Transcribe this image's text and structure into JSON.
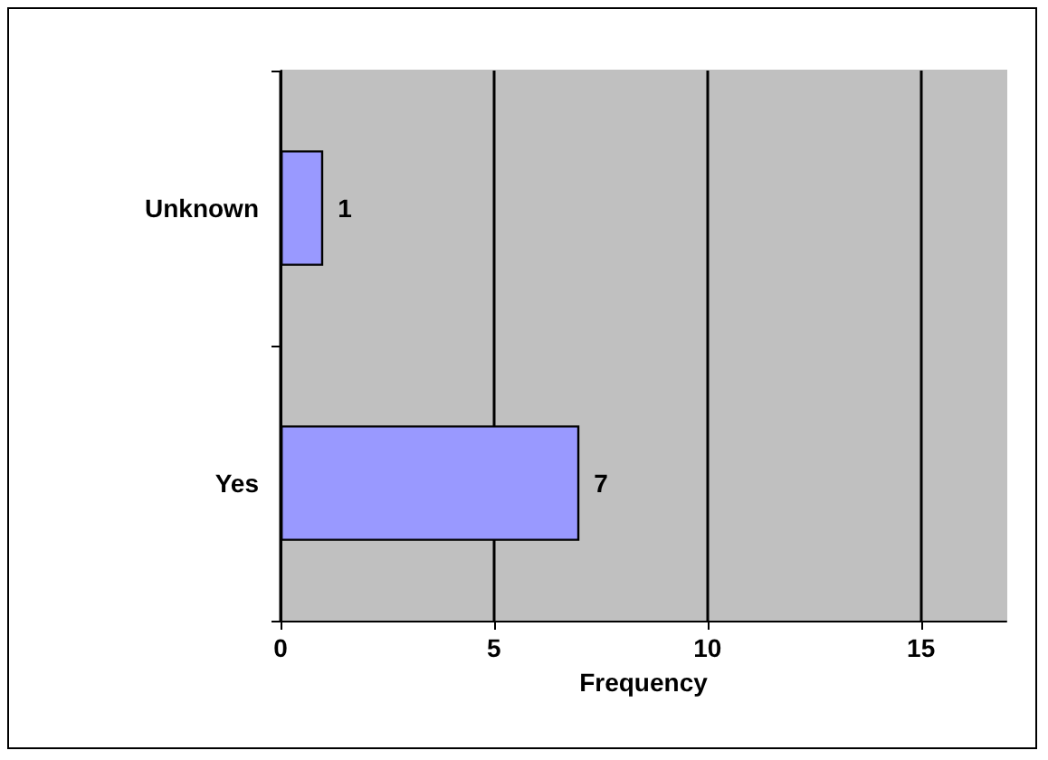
{
  "chart_data": {
    "type": "bar",
    "orientation": "horizontal",
    "xlabel": "Frequency",
    "categories": [
      "Unknown",
      "Yes"
    ],
    "values": [
      1,
      7
    ],
    "color": "#9999ff",
    "xlim": [
      0,
      17
    ],
    "xticks": [
      0,
      5,
      10,
      15
    ],
    "grid": "x",
    "data_labels": true
  }
}
